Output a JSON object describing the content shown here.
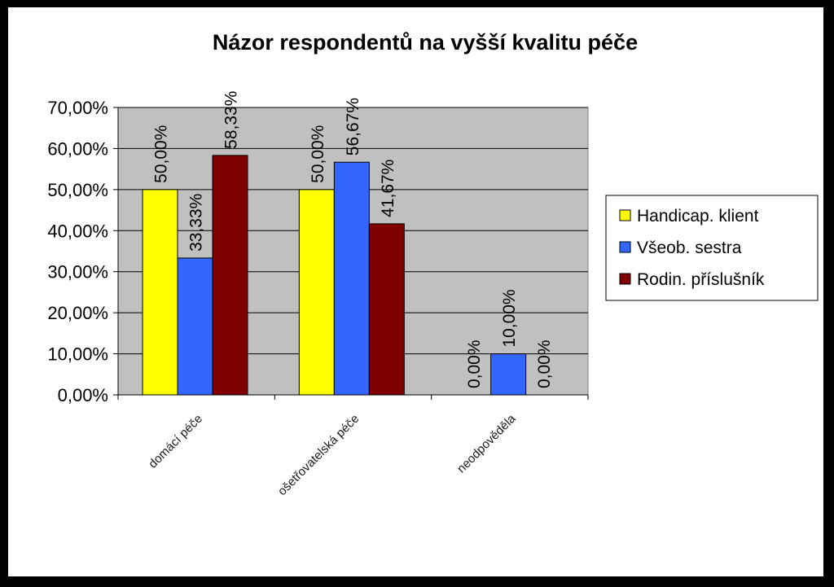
{
  "chart_data": {
    "type": "bar",
    "title": "Názor respondentů na vyšší kvalitu péče",
    "xlabel": "",
    "ylabel": "",
    "categories": [
      "domácí péče",
      "ošetřovatelská péče",
      "neodpověděla"
    ],
    "series": [
      {
        "name": "Handicap. klient",
        "color": "#ffff00",
        "values": [
          50.0,
          50.0,
          0.0
        ],
        "labels": [
          "50,00%",
          "50,00%",
          "0,00%"
        ]
      },
      {
        "name": "Všeob. sestra",
        "color": "#3366ff",
        "values": [
          33.33,
          56.67,
          10.0
        ],
        "labels": [
          "33,33%",
          "56,67%",
          "10,00%"
        ]
      },
      {
        "name": "Rodin. příslušník",
        "color": "#800000",
        "values": [
          58.33,
          41.67,
          0.0
        ],
        "labels": [
          "58,33%",
          "41,67%",
          "0,00%"
        ]
      }
    ],
    "ylim": [
      0,
      70
    ],
    "yticks": [
      0,
      10,
      20,
      30,
      40,
      50,
      60,
      70
    ],
    "ytick_labels": [
      "0,00%",
      "10,00%",
      "20,00%",
      "30,00%",
      "40,00%",
      "50,00%",
      "60,00%",
      "70,00%"
    ],
    "grid": true,
    "plot_background": "#c0c0c0",
    "legend_position": "right"
  }
}
